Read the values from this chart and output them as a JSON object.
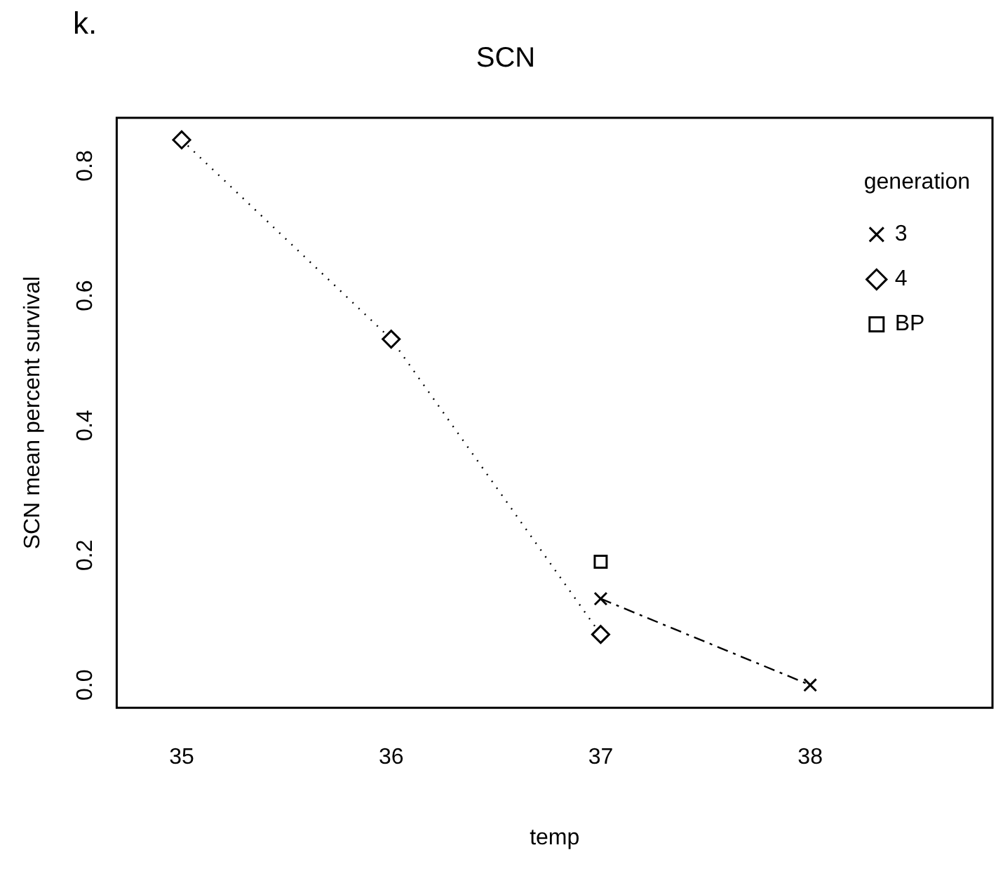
{
  "chart_data": {
    "type": "line",
    "title": "SCN",
    "xlabel": "temp",
    "ylabel": "SCN mean percent survival",
    "legend_title": "generation",
    "annotations": [
      "k."
    ],
    "xlim": [
      34.69,
      38.87
    ],
    "xticks": [
      35,
      36,
      37,
      38
    ],
    "ylim": [
      -0.035,
      0.874
    ],
    "yticks": [
      {
        "value": 0,
        "label": "0.0"
      },
      0.2,
      0.4,
      0.6,
      0.8
    ],
    "grid": false,
    "legend": "top right",
    "series": [
      {
        "name": "3",
        "color": "#000000",
        "x": [
          37,
          38
        ],
        "values": [
          0.133,
          0
        ],
        "marker": "cross",
        "line_style": "dashed"
      },
      {
        "name": "4",
        "color": "#000000",
        "x": [
          35,
          36,
          37
        ],
        "values": [
          0.84,
          0.533,
          0.078
        ],
        "marker": "diamond",
        "line_style": "dotted"
      },
      {
        "name": "BP",
        "color": "#000000",
        "x": [
          37
        ],
        "values": [
          0.19
        ],
        "marker": "square",
        "line_style": "solid"
      }
    ]
  }
}
